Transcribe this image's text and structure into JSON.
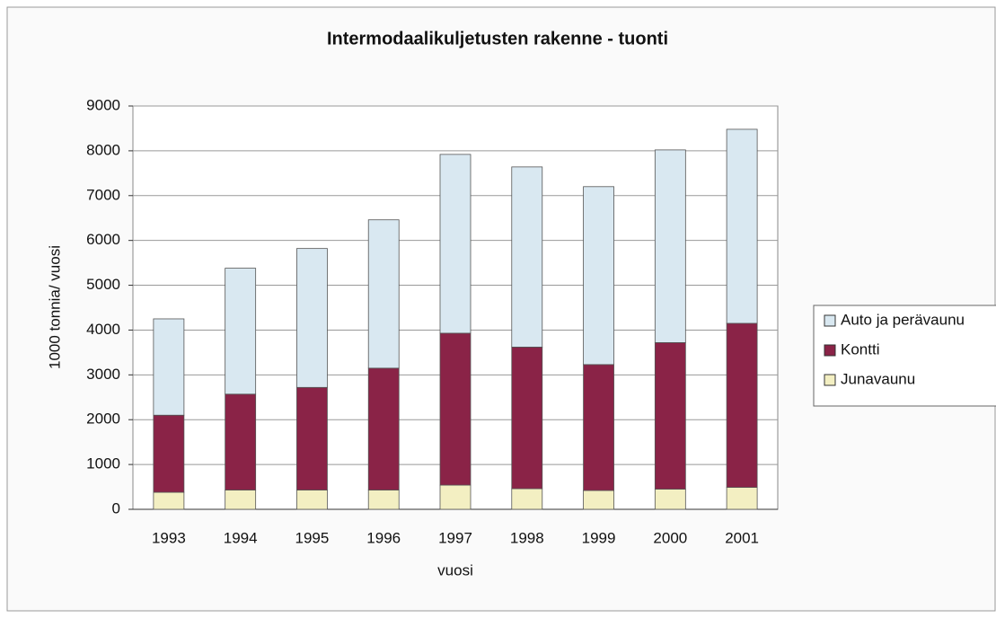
{
  "chart_data": {
    "type": "stacked_bar",
    "title": "Intermodaalikuljetusten rakenne - tuonti",
    "x_label": "vuosi",
    "y_label": "1000 tonnia/ vuosi",
    "categories": [
      "1993",
      "1994",
      "1995",
      "1996",
      "1997",
      "1998",
      "1999",
      "2000",
      "2001"
    ],
    "series": [
      {
        "name": "Junavaunu",
        "color": "#f3efc2",
        "values": [
          380,
          430,
          430,
          430,
          540,
          460,
          420,
          450,
          490
        ]
      },
      {
        "name": "Kontti",
        "color": "#8a2347",
        "values": [
          1720,
          2140,
          2290,
          2720,
          3390,
          3160,
          2810,
          3270,
          3660
        ]
      },
      {
        "name": "Auto ja perävaunu",
        "color": "#d9e8f1",
        "values": [
          2150,
          2810,
          3100,
          3310,
          3990,
          4020,
          3970,
          4300,
          4330
        ]
      }
    ],
    "ylim": [
      0,
      9000
    ],
    "yticks": [
      0,
      1000,
      2000,
      3000,
      4000,
      5000,
      6000,
      7000,
      8000,
      9000
    ],
    "grid": true,
    "legend": "right"
  }
}
